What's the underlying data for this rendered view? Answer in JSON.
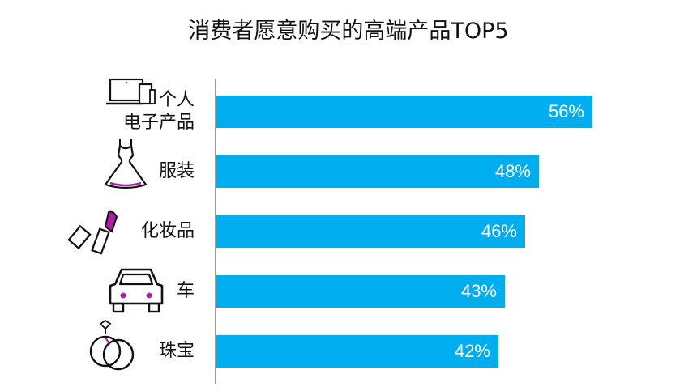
{
  "chart_data": {
    "type": "bar",
    "orientation": "horizontal",
    "title": "消费者愿意购买的高端产品TOP5",
    "categories": [
      "个人\n电子产品",
      "服装",
      "化妆品",
      "车",
      "珠宝"
    ],
    "values": [
      56,
      48,
      46,
      43,
      42
    ],
    "value_labels": [
      "56%",
      "48%",
      "46%",
      "43%",
      "42%"
    ],
    "icons": [
      "laptop-tablet-phone-icon",
      "dress-icon",
      "lipstick-icon",
      "car-icon",
      "rings-icon"
    ],
    "unit": "%",
    "xlim": [
      0,
      70
    ],
    "grid": false,
    "legend": "none"
  },
  "colors": {
    "bar": "#00aeef",
    "accent": "#b01fa8",
    "text": "#111111"
  }
}
